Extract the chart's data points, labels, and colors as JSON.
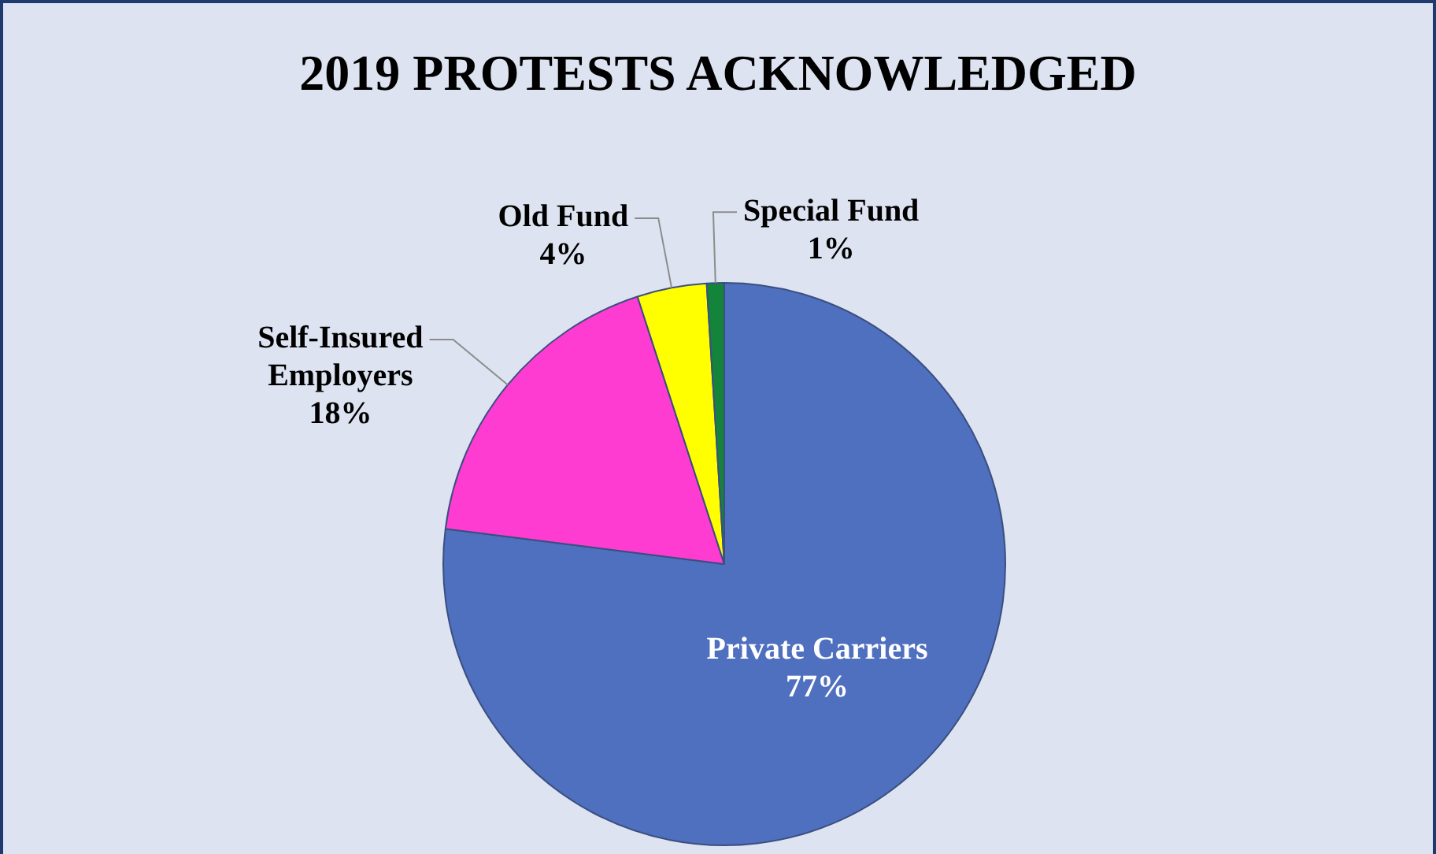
{
  "chart_data": {
    "type": "pie",
    "title": "2019 PROTESTS ACKNOWLEDGED",
    "categories": [
      "Private Carriers",
      "Self-Insured Employers",
      "Old Fund",
      "Special Fund"
    ],
    "values": [
      77,
      18,
      4,
      1
    ],
    "colors": [
      "#4f6fbf",
      "#ff3cd2",
      "#ffff00",
      "#14843a"
    ],
    "value_labels": [
      "77%",
      "18%",
      "4%",
      "1%"
    ]
  }
}
